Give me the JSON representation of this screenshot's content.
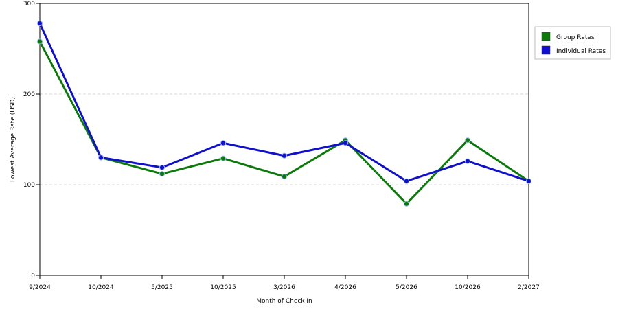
{
  "chart_data": {
    "type": "line",
    "title": "",
    "xlabel": "Month of Check In",
    "ylabel": "Lowest Average Rate (USD)",
    "categories": [
      "9/2024",
      "10/2024",
      "5/2025",
      "10/2025",
      "3/2026",
      "4/2026",
      "5/2026",
      "10/2026",
      "2/2027"
    ],
    "ylim": [
      0,
      300
    ],
    "yticks": [
      0,
      100,
      200,
      300
    ],
    "grid": true,
    "legend_position": "right",
    "series": [
      {
        "name": "Group Rates",
        "color": "#0b7a0b",
        "values": [
          258,
          130,
          112,
          129,
          109,
          149,
          79,
          149,
          104
        ]
      },
      {
        "name": "Individual Rates",
        "color": "#1010cc",
        "values": [
          278,
          130,
          119,
          146,
          132,
          146,
          104,
          126,
          104
        ]
      }
    ]
  }
}
